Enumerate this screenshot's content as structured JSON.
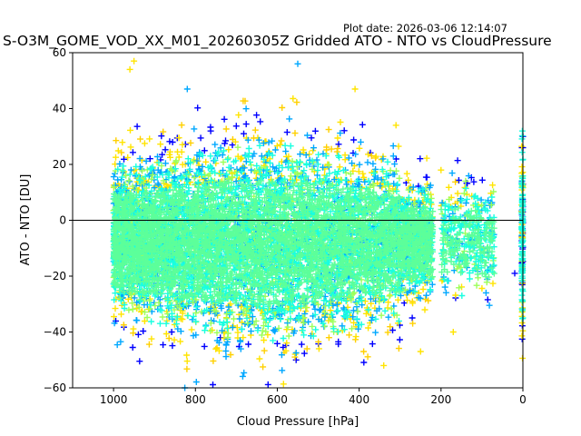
{
  "plot_date_label": "Plot date: 2026-03-06 12:14:07",
  "chart_data": {
    "type": "scatter",
    "title": "S-O3M_GOME_VOD_XX_M01_20260305Z Gridded ATO - NTO vs CloudPressure",
    "xlabel": "Cloud Pressure [hPa]",
    "ylabel": "ATO - NTO [DU]",
    "xlim": [
      1100,
      0
    ],
    "ylim": [
      -60,
      60
    ],
    "x_inverted": true,
    "xticks": [
      1000,
      800,
      600,
      400,
      200,
      0
    ],
    "yticks": [
      -60,
      -40,
      -20,
      0,
      20,
      40,
      60
    ],
    "reference_line_y": 0,
    "marker": "+",
    "grid": false,
    "colors": {
      "blue": "#0000ff",
      "azure": "#00a8ff",
      "cyan": "#19ffe0",
      "mint": "#5cff9a",
      "green": "#9cff5a",
      "yellow": "#ffe400",
      "gold": "#ffd000"
    },
    "point_cloud": {
      "description_count": 9000,
      "pressure_range": [
        1000,
        0
      ],
      "dense_core_center": [
        620,
        -8
      ],
      "upper_edge_approx": [
        [
          1000,
          40
        ],
        [
          800,
          38
        ],
        [
          600,
          30
        ],
        [
          400,
          25
        ],
        [
          200,
          5
        ],
        [
          0,
          30
        ]
      ],
      "lower_edge_approx": [
        [
          1000,
          -30
        ],
        [
          900,
          -55
        ],
        [
          700,
          -60
        ],
        [
          500,
          -55
        ],
        [
          300,
          -45
        ],
        [
          200,
          -25
        ],
        [
          0,
          -40
        ]
      ],
      "outliers": [
        {
          "x": 950,
          "y": 57
        },
        {
          "x": 960,
          "y": 54
        },
        {
          "x": 820,
          "y": 47
        },
        {
          "x": 550,
          "y": 56
        },
        {
          "x": 410,
          "y": 47
        },
        {
          "x": 310,
          "y": 34
        },
        {
          "x": 200,
          "y": 18
        },
        {
          "x": 140,
          "y": 14
        },
        {
          "x": 90,
          "y": -26
        },
        {
          "x": 20,
          "y": -19
        },
        {
          "x": 170,
          "y": -40
        },
        {
          "x": 250,
          "y": -47
        },
        {
          "x": 0,
          "y": 30
        },
        {
          "x": 0,
          "y": 26
        },
        {
          "x": 340,
          "y": -52
        }
      ]
    }
  }
}
